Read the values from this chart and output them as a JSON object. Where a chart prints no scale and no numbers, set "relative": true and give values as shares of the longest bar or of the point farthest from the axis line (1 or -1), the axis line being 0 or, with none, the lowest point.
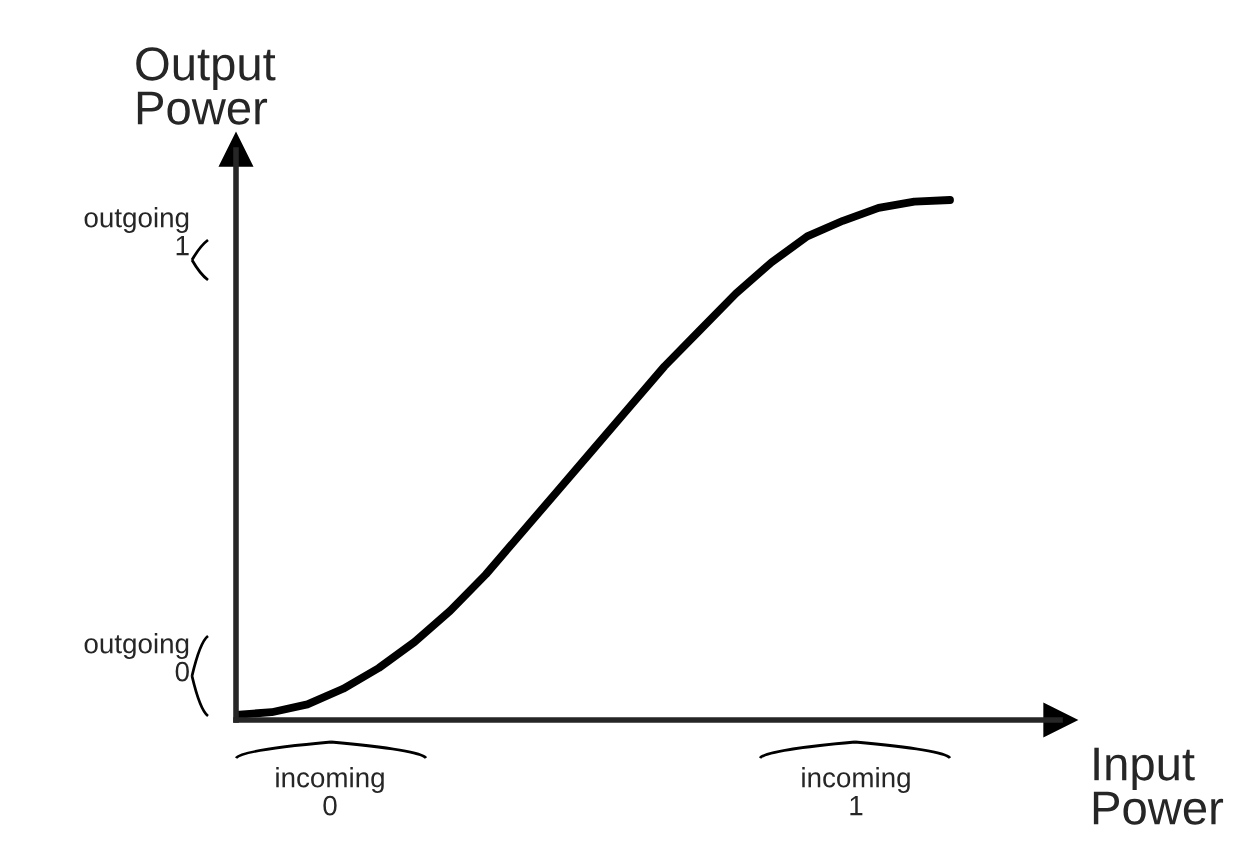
{
  "chart_data": {
    "type": "line",
    "relative": true,
    "xlabel": "Input Power",
    "ylabel": "Output Power",
    "categories": [
      null,
      null,
      null,
      null,
      null,
      null,
      null,
      null,
      null,
      null,
      null,
      null,
      null,
      null,
      null,
      null,
      null,
      null,
      null,
      null,
      null
    ],
    "series": [
      {
        "color": "#000000",
        "values": [
          0.01,
          0.015,
          0.03,
          0.06,
          0.1,
          0.15,
          0.21,
          0.28,
          0.36,
          0.44,
          0.52,
          0.6,
          0.68,
          0.75,
          0.82,
          0.88,
          0.93,
          0.96,
          0.985,
          0.997,
          1.0
        ]
      }
    ],
    "annotations": [
      "outgoing\n1",
      "outgoing\n0",
      "incoming\n0",
      "incoming\n1"
    ],
    "legend": false,
    "marker": "none",
    "line_style": "solid"
  }
}
